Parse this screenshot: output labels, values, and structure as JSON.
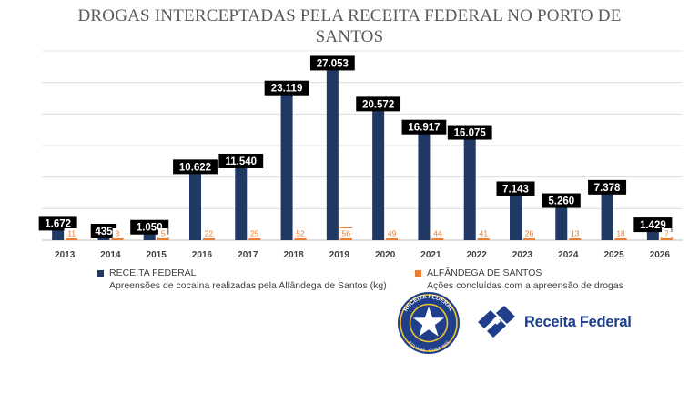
{
  "chart_data": {
    "type": "bar",
    "title": "DROGAS INTERCEPTADAS PELA RECEITA FEDERAL NO PORTO DE SANTOS",
    "categories": [
      "2013",
      "2014",
      "2015",
      "2016",
      "2017",
      "2018",
      "2019",
      "2020",
      "2021",
      "2022",
      "2023",
      "2024",
      "2025",
      "2026"
    ],
    "series": [
      {
        "name": "RECEITA FEDERAL",
        "description": "Apreensões de cocaína realizadas pela Alfândega de Santos (kg)",
        "color": "#1f3864",
        "values": [
          1672,
          435,
          1050,
          10622,
          11540,
          23119,
          27053,
          20572,
          16917,
          16075,
          7143,
          5260,
          7378,
          1429
        ],
        "labels": [
          "1.672",
          "435",
          "1.050",
          "10.622",
          "11.540",
          "23.119",
          "27.053",
          "20.572",
          "16.917",
          "16.075",
          "7.143",
          "5.260",
          "7.378",
          "1.429"
        ]
      },
      {
        "name": "ALFÂNDEGA DE SANTOS",
        "description": "Ações concluídas com a apreensão de drogas",
        "color": "#ed7d31",
        "values": [
          11,
          3,
          5,
          22,
          25,
          52,
          56,
          49,
          44,
          41,
          26,
          13,
          18,
          7
        ],
        "labels": [
          "11",
          "3",
          "5",
          "22",
          "25",
          "52",
          "56",
          "49",
          "44",
          "41",
          "26",
          "13",
          "18",
          "7"
        ]
      }
    ],
    "ylim": [
      0,
      30000
    ],
    "grid": true,
    "legend_position": "bottom"
  },
  "logos": {
    "emblem_top_text": "RECEITA FEDERAL",
    "emblem_bottom_text": "ADUANA · CUSTOMS",
    "brand_text": "Receita Federal",
    "brand_color": "#1f3f8a"
  }
}
